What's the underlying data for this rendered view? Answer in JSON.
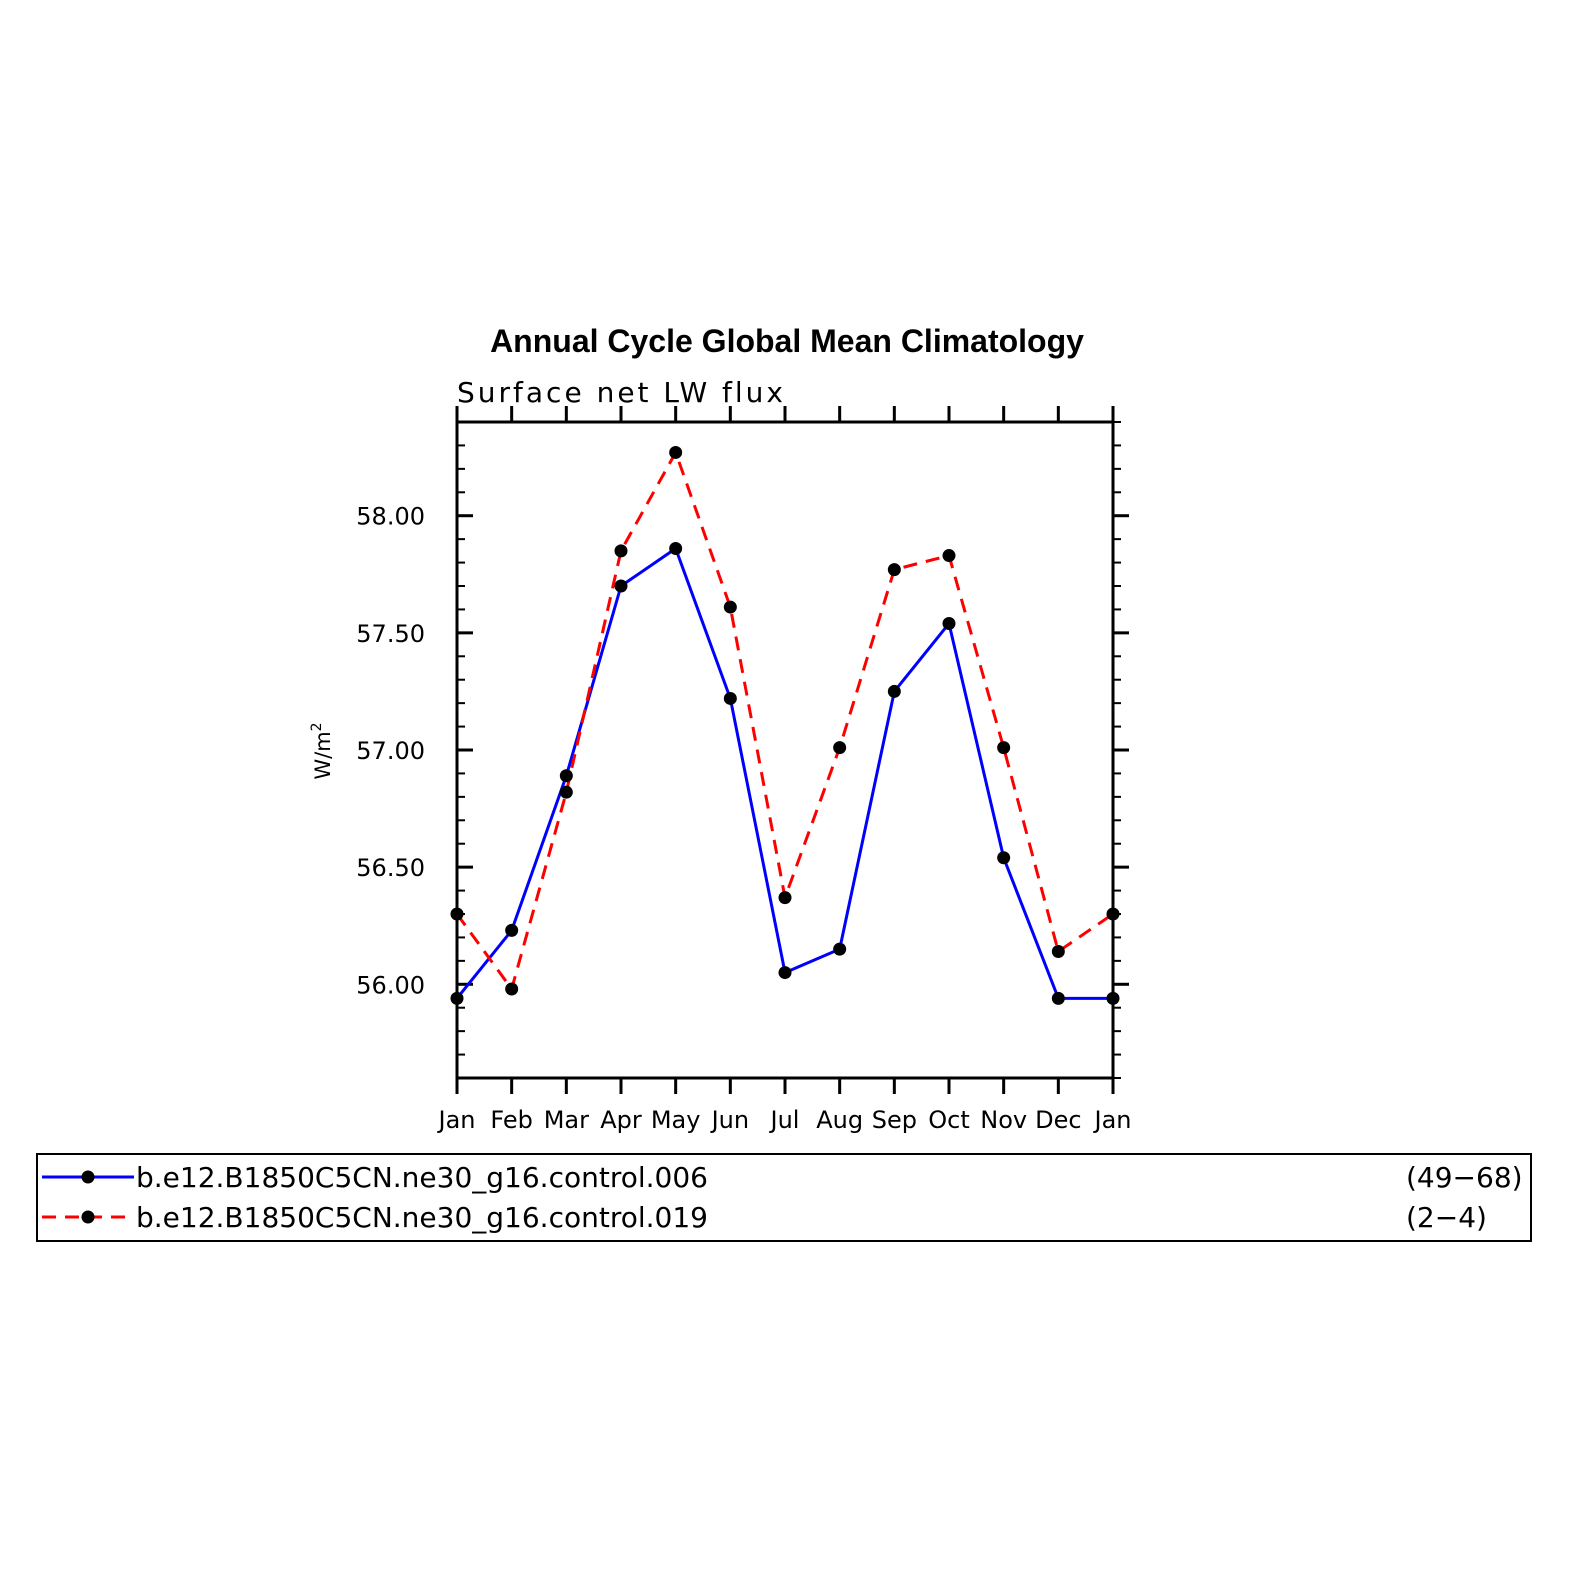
{
  "chart_data": {
    "type": "line",
    "title": "Annual Cycle Global Mean Climatology",
    "subtitle": "Surface net LW flux",
    "xlabel": "",
    "ylabel": "W/m",
    "ylabel_superscript": "2",
    "categories": [
      "Jan",
      "Feb",
      "Mar",
      "Apr",
      "May",
      "Jun",
      "Jul",
      "Aug",
      "Sep",
      "Oct",
      "Nov",
      "Dec",
      "Jan"
    ],
    "ylim": [
      55.6,
      58.4
    ],
    "yticks": [
      "56.00",
      "56.50",
      "57.00",
      "57.50",
      "58.00"
    ],
    "ytick_values": [
      56.0,
      56.5,
      57.0,
      57.5,
      58.0
    ],
    "series": [
      {
        "name": "b.e12.B1850C5CN.ne30_g16.control.006",
        "years": "(49−68)",
        "color": "#0000ff",
        "dashed": false,
        "values": [
          55.94,
          56.23,
          56.89,
          57.7,
          57.86,
          57.22,
          56.05,
          56.15,
          57.25,
          57.54,
          56.54,
          55.94,
          55.94
        ]
      },
      {
        "name": "b.e12.B1850C5CN.ne30_g16.control.019",
        "years": "(2−4)",
        "color": "#ff0000",
        "dashed": true,
        "values": [
          56.3,
          55.98,
          56.82,
          57.85,
          58.27,
          57.61,
          56.37,
          57.01,
          57.77,
          57.83,
          57.01,
          56.14,
          56.3
        ]
      }
    ],
    "marker_color": "#000000",
    "grid": false,
    "legend_position": "bottom"
  }
}
